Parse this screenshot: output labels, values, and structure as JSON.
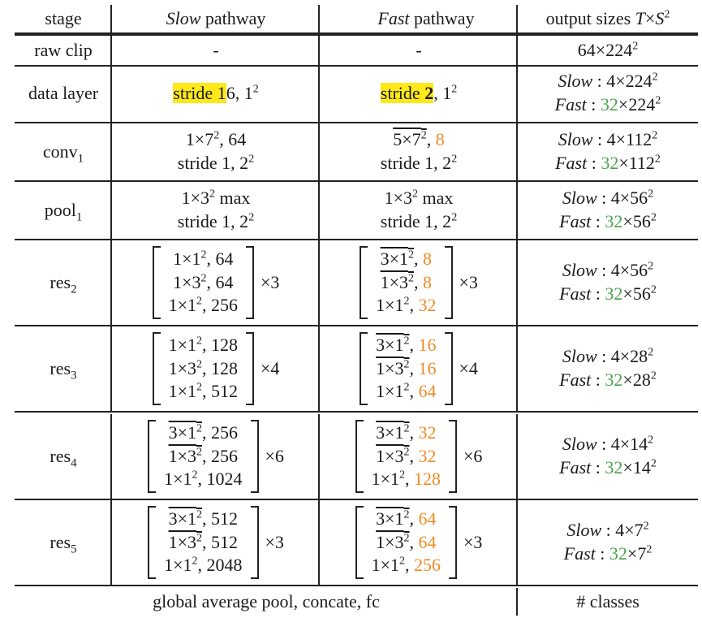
{
  "header": {
    "stage": "stage",
    "slow_word": "Slow",
    "pathway_word": " pathway",
    "fast_word": "Fast",
    "output_prefix": "output sizes ",
    "T": "T",
    "times": "×",
    "S": "S",
    "S_sup": "2"
  },
  "raw_clip": {
    "stage": "raw clip",
    "slow": "-",
    "fast": "-",
    "out_base": "64×224",
    "out_sup": "2"
  },
  "data_layer": {
    "stage": "data layer",
    "slow_hl": "stride 1",
    "slow_rest": "6, 1",
    "slow_sup": "2",
    "fast_hl_a": "stride ",
    "fast_hl_b": "2",
    "fast_rest": ", 1",
    "fast_sup": "2",
    "out_slow_label": "Slow",
    "out_colon": " : ",
    "out_slow_val": "4×224",
    "out_slow_sup": "2",
    "out_fast_label": "Fast",
    "out_fast_t": "32",
    "out_fast_val": "×224",
    "out_fast_sup": "2"
  },
  "conv1": {
    "stage": "conv",
    "stage_sub": "1",
    "slow_a": "1×7",
    "slow_a_sup": "2",
    "slow_a_rest": ", 64",
    "slow_b": "stride 1, 2",
    "slow_b_sup": "2",
    "fast_a": "5×7",
    "fast_a_sup": "2",
    "fast_a_comma": ", ",
    "fast_a_ch": "8",
    "fast_b": "stride 1, 2",
    "fast_b_sup": "2",
    "out_slow_val": "4×112",
    "out_fast_val": "×112",
    "out_sup": "2",
    "out_fast_t": "32"
  },
  "pool1": {
    "stage": "pool",
    "stage_sub": "1",
    "slow_a": "1×3",
    "slow_a_sup": "2",
    "slow_a_rest": " max",
    "slow_b": "stride 1, 2",
    "slow_b_sup": "2",
    "fast_a": "1×3",
    "fast_a_sup": "2",
    "fast_a_rest": " max",
    "fast_b": "stride 1, 2",
    "fast_b_sup": "2",
    "out_slow_val": "4×56",
    "out_fast_val": "×56",
    "out_sup": "2",
    "out_fast_t": "32"
  },
  "res_blocks": [
    {
      "stage": "res",
      "sub": "2",
      "slow": [
        [
          "1×1",
          "2",
          ", 64",
          false
        ],
        [
          "1×3",
          "2",
          ", 64",
          false
        ],
        [
          "1×1",
          "2",
          ", 256",
          false
        ]
      ],
      "fast": [
        [
          "3×1",
          "2",
          "8",
          true
        ],
        [
          "1×3",
          "2",
          "8",
          true
        ],
        [
          "1×1",
          "2",
          "32",
          false
        ]
      ],
      "mult": "×3",
      "out_slow_val": "4×56",
      "out_fast_val": "×56",
      "out_sup": "2",
      "out_fast_t": "32"
    },
    {
      "stage": "res",
      "sub": "3",
      "slow": [
        [
          "1×1",
          "2",
          ", 128",
          false
        ],
        [
          "1×3",
          "2",
          ", 128",
          false
        ],
        [
          "1×1",
          "2",
          ", 512",
          false
        ]
      ],
      "fast": [
        [
          "3×1",
          "2",
          "16",
          true
        ],
        [
          "1×3",
          "2",
          "16",
          true
        ],
        [
          "1×1",
          "2",
          "64",
          false
        ]
      ],
      "mult": "×4",
      "out_slow_val": "4×28",
      "out_fast_val": "×28",
      "out_sup": "2",
      "out_fast_t": "32"
    },
    {
      "stage": "res",
      "sub": "4",
      "slow": [
        [
          "3×1",
          "2",
          ", 256",
          true
        ],
        [
          "1×3",
          "2",
          ", 256",
          true
        ],
        [
          "1×1",
          "2",
          ", 1024",
          false
        ]
      ],
      "fast": [
        [
          "3×1",
          "2",
          "32",
          true
        ],
        [
          "1×3",
          "2",
          "32",
          true
        ],
        [
          "1×1",
          "2",
          "128",
          false
        ]
      ],
      "mult": "×6",
      "out_slow_val": "4×14",
      "out_fast_val": "×14",
      "out_sup": "2",
      "out_fast_t": "32"
    },
    {
      "stage": "res",
      "sub": "5",
      "slow": [
        [
          "3×1",
          "2",
          ", 512",
          true
        ],
        [
          "1×3",
          "2",
          ", 512",
          true
        ],
        [
          "1×1",
          "2",
          ", 2048",
          false
        ]
      ],
      "fast": [
        [
          "3×1",
          "2",
          "64",
          true
        ],
        [
          "1×3",
          "2",
          "64",
          true
        ],
        [
          "1×1",
          "2",
          "256",
          false
        ]
      ],
      "mult": "×3",
      "out_slow_val": "4×7",
      "out_fast_val": "×7",
      "out_sup": "2",
      "out_fast_t": "32"
    }
  ],
  "footer": {
    "left": "global average pool, concate, fc",
    "right": "# classes"
  },
  "colors": {
    "highlight": "#ffe81a",
    "fast_channels": "#f08a24",
    "fast_temporal": "#4aa34a",
    "rule": "#222222"
  }
}
